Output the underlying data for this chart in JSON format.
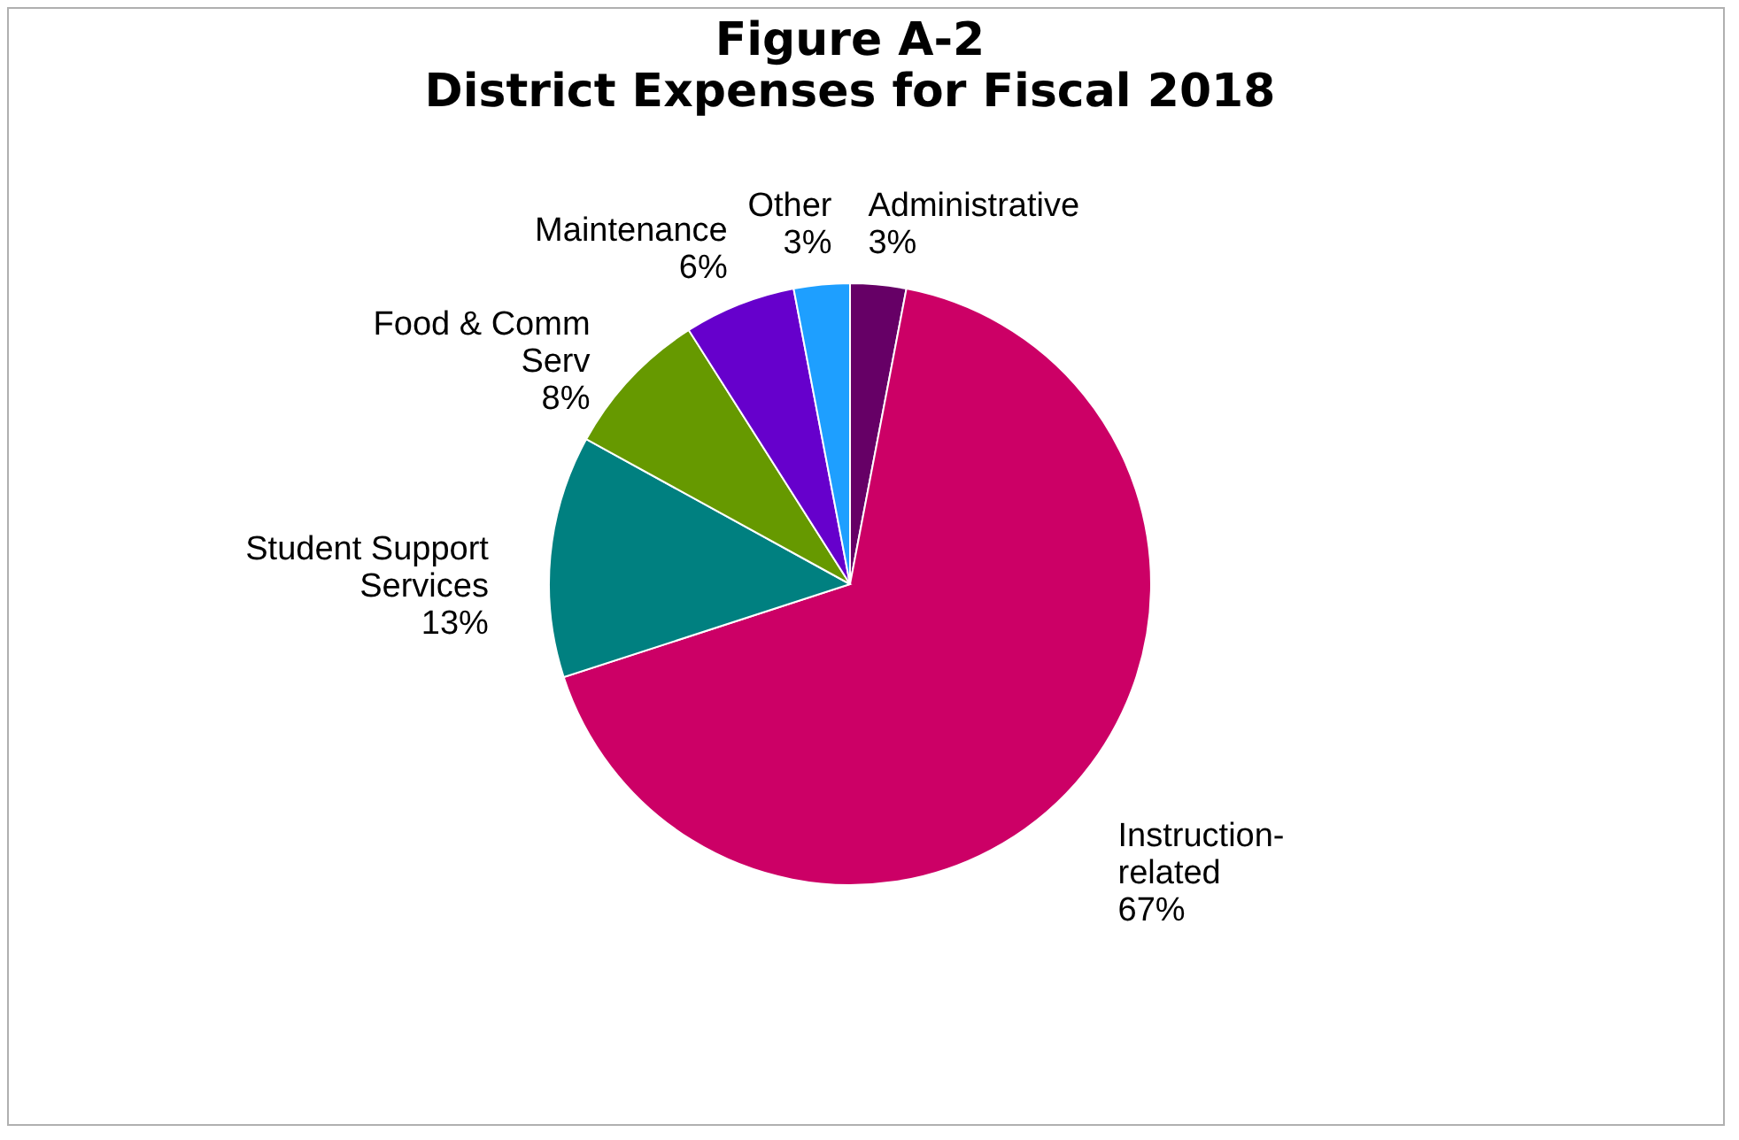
{
  "chart_data": {
    "type": "pie",
    "title": "Figure A-2",
    "subtitle": "District Expenses for Fiscal 2018",
    "categories": [
      "Administrative",
      "Instruction-related",
      "Student Support Services",
      "Food & Comm Serv",
      "Maintenance",
      "Other"
    ],
    "values": [
      3,
      67,
      13,
      8,
      6,
      3
    ],
    "value_labels": [
      "3%",
      "67%",
      "13%",
      "8%",
      "6%",
      "3%"
    ],
    "colors": [
      "#660066",
      "#cc0066",
      "#008080",
      "#669900",
      "#6600cc",
      "#1e9fff"
    ],
    "legend": false
  }
}
